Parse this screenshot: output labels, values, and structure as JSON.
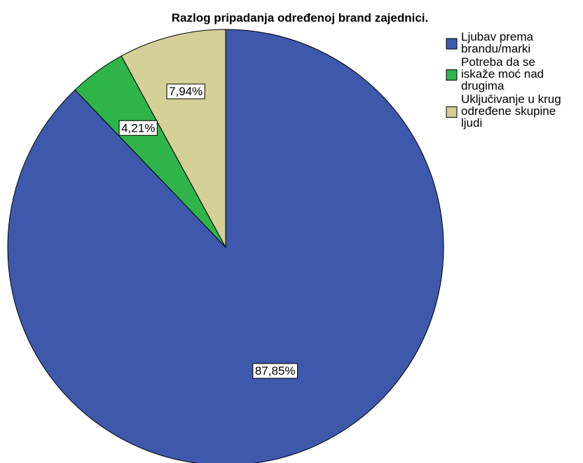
{
  "chart_data": {
    "type": "pie",
    "title": "Razlog pripadanja određenoj brand zajednici.",
    "slices": [
      {
        "label": "Ljubav prema brandu/marki",
        "value": 87.85,
        "display": "87,85%",
        "color": "#3e58ac",
        "legend_lines": [
          "Ljubav prema",
          "brandu/marki"
        ]
      },
      {
        "label": "Potreba da se iskaže moć nad drugima",
        "value": 4.21,
        "display": "4,21%",
        "color": "#2fb44a",
        "legend_lines": [
          "Potreba da se",
          "iskaže moć nad",
          "drugima"
        ]
      },
      {
        "label": "Uključivanje u krug određene skupine ljudi",
        "value": 7.94,
        "display": "7,94%",
        "color": "#d5cf98",
        "legend_lines": [
          "Uključivanje u krug",
          "određene skupine",
          "ljudi"
        ]
      }
    ],
    "start_angle": "12 o'clock",
    "direction": "clockwise",
    "legend_position": "top-right"
  }
}
